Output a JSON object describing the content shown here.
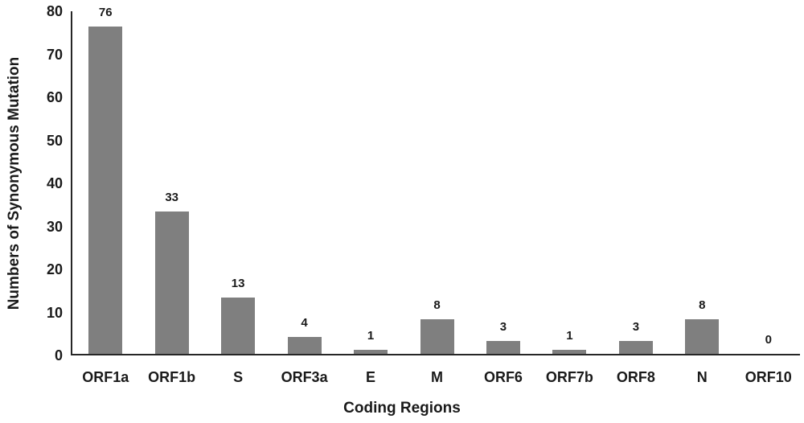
{
  "chart_data": {
    "type": "bar",
    "title": "",
    "categories": [
      "ORF1a",
      "ORF1b",
      "S",
      "ORF3a",
      "E",
      "M",
      "ORF6",
      "ORF7b",
      "ORF8",
      "N",
      "ORF10"
    ],
    "values": [
      76,
      33,
      13,
      4,
      1,
      8,
      3,
      1,
      3,
      8,
      0
    ],
    "data_labels": [
      "76",
      "33",
      "13",
      "4",
      "1",
      "8",
      "3",
      "1",
      "3",
      "8",
      "0"
    ],
    "xlabel": "Coding Regions",
    "ylabel": "Numbers of Synonymous Mutation",
    "ylim": [
      0,
      80
    ],
    "yticks": [
      0,
      10,
      20,
      30,
      40,
      50,
      60,
      70,
      80
    ],
    "grid": false,
    "legend": "none",
    "bar_color": "#7f7f7f",
    "axis_color": "#262626",
    "text_color": "#1a1a1a"
  }
}
